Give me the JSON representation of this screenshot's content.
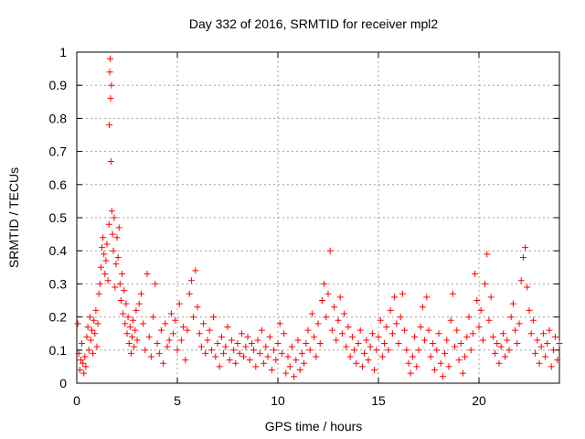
{
  "chart_data": {
    "type": "scatter",
    "title": "Day 332 of 2016, SRMTID for receiver mpl2",
    "xlabel": "GPS time / hours",
    "ylabel": "SRMTID / TECUs",
    "xlim": [
      0,
      24
    ],
    "ylim": [
      0,
      1
    ],
    "xticks": [
      0,
      5,
      10,
      15,
      20
    ],
    "xtick_labels": [
      "0",
      "5",
      "10",
      "15",
      "20"
    ],
    "yticks": [
      0,
      0.1,
      0.2,
      0.3,
      0.4,
      0.5,
      0.6,
      0.7,
      0.8,
      0.9,
      1
    ],
    "ytick_labels": [
      "0",
      "0.1",
      "0.2",
      "0.3",
      "0.4",
      "0.5",
      "0.6",
      "0.7",
      "0.8",
      "0.9",
      "1"
    ],
    "grid": true,
    "marker": "plus",
    "color": "#ff0000",
    "series": [
      {
        "name": "SRMTID",
        "points": [
          [
            0.05,
            0.18
          ],
          [
            0.1,
            0.09
          ],
          [
            0.15,
            0.04
          ],
          [
            0.2,
            0.07
          ],
          [
            0.25,
            0.12
          ],
          [
            0.3,
            0.06
          ],
          [
            0.35,
            0.03
          ],
          [
            0.4,
            0.08
          ],
          [
            0.45,
            0.05
          ],
          [
            0.5,
            0.14
          ],
          [
            0.55,
            0.17
          ],
          [
            0.6,
            0.1
          ],
          [
            0.65,
            0.2
          ],
          [
            0.7,
            0.13
          ],
          [
            0.75,
            0.16
          ],
          [
            0.8,
            0.09
          ],
          [
            0.85,
            0.19
          ],
          [
            0.9,
            0.15
          ],
          [
            0.95,
            0.22
          ],
          [
            1.0,
            0.11
          ],
          [
            1.05,
            0.18
          ],
          [
            1.1,
            0.27
          ],
          [
            1.15,
            0.3
          ],
          [
            1.2,
            0.35
          ],
          [
            1.25,
            0.41
          ],
          [
            1.3,
            0.44
          ],
          [
            1.35,
            0.39
          ],
          [
            1.4,
            0.33
          ],
          [
            1.45,
            0.37
          ],
          [
            1.5,
            0.42
          ],
          [
            1.55,
            0.31
          ],
          [
            1.6,
            0.48
          ],
          [
            1.62,
            0.78
          ],
          [
            1.64,
            0.94
          ],
          [
            1.66,
            0.98
          ],
          [
            1.68,
            0.86
          ],
          [
            1.7,
            0.67
          ],
          [
            1.72,
            0.9
          ],
          [
            1.74,
            0.52
          ],
          [
            1.78,
            0.45
          ],
          [
            1.82,
            0.4
          ],
          [
            1.86,
            0.5
          ],
          [
            1.9,
            0.29
          ],
          [
            1.95,
            0.36
          ],
          [
            2.0,
            0.44
          ],
          [
            2.05,
            0.38
          ],
          [
            2.1,
            0.47
          ],
          [
            2.15,
            0.3
          ],
          [
            2.2,
            0.25
          ],
          [
            2.25,
            0.33
          ],
          [
            2.3,
            0.21
          ],
          [
            2.35,
            0.28
          ],
          [
            2.4,
            0.18
          ],
          [
            2.45,
            0.24
          ],
          [
            2.5,
            0.15
          ],
          [
            2.55,
            0.2
          ],
          [
            2.6,
            0.12
          ],
          [
            2.65,
            0.17
          ],
          [
            2.7,
            0.09
          ],
          [
            2.75,
            0.14
          ],
          [
            2.8,
            0.19
          ],
          [
            2.85,
            0.11
          ],
          [
            2.9,
            0.16
          ],
          [
            2.95,
            0.22
          ],
          [
            3.0,
            0.13
          ],
          [
            3.1,
            0.24
          ],
          [
            3.2,
            0.27
          ],
          [
            3.3,
            0.18
          ],
          [
            3.4,
            0.1
          ],
          [
            3.5,
            0.33
          ],
          [
            3.6,
            0.14
          ],
          [
            3.7,
            0.08
          ],
          [
            3.8,
            0.2
          ],
          [
            3.9,
            0.3
          ],
          [
            4.0,
            0.12
          ],
          [
            4.1,
            0.09
          ],
          [
            4.2,
            0.16
          ],
          [
            4.3,
            0.06
          ],
          [
            4.4,
            0.18
          ],
          [
            4.5,
            0.11
          ],
          [
            4.6,
            0.13
          ],
          [
            4.7,
            0.21
          ],
          [
            4.8,
            0.15
          ],
          [
            4.9,
            0.19
          ],
          [
            5.0,
            0.1
          ],
          [
            5.1,
            0.24
          ],
          [
            5.2,
            0.13
          ],
          [
            5.3,
            0.17
          ],
          [
            5.4,
            0.07
          ],
          [
            5.5,
            0.16
          ],
          [
            5.6,
            0.27
          ],
          [
            5.7,
            0.31
          ],
          [
            5.8,
            0.2
          ],
          [
            5.9,
            0.34
          ],
          [
            6.0,
            0.23
          ],
          [
            6.1,
            0.15
          ],
          [
            6.2,
            0.11
          ],
          [
            6.3,
            0.18
          ],
          [
            6.4,
            0.09
          ],
          [
            6.5,
            0.13
          ],
          [
            6.6,
            0.16
          ],
          [
            6.7,
            0.1
          ],
          [
            6.8,
            0.2
          ],
          [
            6.9,
            0.08
          ],
          [
            7.0,
            0.12
          ],
          [
            7.1,
            0.05
          ],
          [
            7.2,
            0.14
          ],
          [
            7.3,
            0.09
          ],
          [
            7.4,
            0.11
          ],
          [
            7.5,
            0.17
          ],
          [
            7.6,
            0.07
          ],
          [
            7.7,
            0.13
          ],
          [
            7.8,
            0.1
          ],
          [
            7.9,
            0.06
          ],
          [
            8.0,
            0.12
          ],
          [
            8.1,
            0.09
          ],
          [
            8.2,
            0.15
          ],
          [
            8.3,
            0.08
          ],
          [
            8.4,
            0.11
          ],
          [
            8.5,
            0.14
          ],
          [
            8.6,
            0.07
          ],
          [
            8.7,
            0.12
          ],
          [
            8.8,
            0.1
          ],
          [
            8.9,
            0.05
          ],
          [
            9.0,
            0.13
          ],
          [
            9.1,
            0.09
          ],
          [
            9.2,
            0.16
          ],
          [
            9.3,
            0.06
          ],
          [
            9.4,
            0.11
          ],
          [
            9.5,
            0.08
          ],
          [
            9.6,
            0.14
          ],
          [
            9.7,
            0.04
          ],
          [
            9.8,
            0.1
          ],
          [
            9.9,
            0.07
          ],
          [
            10.0,
            0.12
          ],
          [
            10.1,
            0.18
          ],
          [
            10.2,
            0.09
          ],
          [
            10.3,
            0.15
          ],
          [
            10.4,
            0.03
          ],
          [
            10.5,
            0.08
          ],
          [
            10.6,
            0.05
          ],
          [
            10.7,
            0.11
          ],
          [
            10.8,
            0.02
          ],
          [
            10.9,
            0.07
          ],
          [
            11.0,
            0.13
          ],
          [
            11.1,
            0.04
          ],
          [
            11.2,
            0.09
          ],
          [
            11.3,
            0.06
          ],
          [
            11.4,
            0.12
          ],
          [
            11.5,
            0.16
          ],
          [
            11.6,
            0.1
          ],
          [
            11.7,
            0.21
          ],
          [
            11.8,
            0.14
          ],
          [
            11.9,
            0.08
          ],
          [
            12.0,
            0.18
          ],
          [
            12.1,
            0.12
          ],
          [
            12.2,
            0.25
          ],
          [
            12.3,
            0.3
          ],
          [
            12.4,
            0.2
          ],
          [
            12.5,
            0.27
          ],
          [
            12.6,
            0.4
          ],
          [
            12.7,
            0.16
          ],
          [
            12.8,
            0.23
          ],
          [
            12.9,
            0.13
          ],
          [
            13.0,
            0.19
          ],
          [
            13.1,
            0.26
          ],
          [
            13.2,
            0.15
          ],
          [
            13.3,
            0.21
          ],
          [
            13.4,
            0.11
          ],
          [
            13.5,
            0.17
          ],
          [
            13.6,
            0.08
          ],
          [
            13.7,
            0.14
          ],
          [
            13.8,
            0.1
          ],
          [
            13.9,
            0.06
          ],
          [
            14.0,
            0.12
          ],
          [
            14.1,
            0.16
          ],
          [
            14.2,
            0.05
          ],
          [
            14.3,
            0.09
          ],
          [
            14.4,
            0.13
          ],
          [
            14.5,
            0.07
          ],
          [
            14.6,
            0.11
          ],
          [
            14.7,
            0.15
          ],
          [
            14.8,
            0.04
          ],
          [
            14.9,
            0.1
          ],
          [
            15.0,
            0.14
          ],
          [
            15.1,
            0.19
          ],
          [
            15.2,
            0.08
          ],
          [
            15.3,
            0.12
          ],
          [
            15.4,
            0.17
          ],
          [
            15.5,
            0.1
          ],
          [
            15.6,
            0.22
          ],
          [
            15.7,
            0.15
          ],
          [
            15.8,
            0.26
          ],
          [
            15.9,
            0.18
          ],
          [
            16.0,
            0.12
          ],
          [
            16.1,
            0.2
          ],
          [
            16.2,
            0.27
          ],
          [
            16.3,
            0.16
          ],
          [
            16.4,
            0.1
          ],
          [
            16.5,
            0.06
          ],
          [
            16.6,
            0.03
          ],
          [
            16.7,
            0.08
          ],
          [
            16.8,
            0.14
          ],
          [
            16.9,
            0.05
          ],
          [
            17.0,
            0.1
          ],
          [
            17.1,
            0.17
          ],
          [
            17.2,
            0.23
          ],
          [
            17.3,
            0.13
          ],
          [
            17.4,
            0.26
          ],
          [
            17.5,
            0.16
          ],
          [
            17.6,
            0.08
          ],
          [
            17.7,
            0.12
          ],
          [
            17.8,
            0.04
          ],
          [
            17.9,
            0.1
          ],
          [
            18.0,
            0.15
          ],
          [
            18.1,
            0.06
          ],
          [
            18.2,
            0.02
          ],
          [
            18.3,
            0.09
          ],
          [
            18.4,
            0.13
          ],
          [
            18.5,
            0.05
          ],
          [
            18.6,
            0.19
          ],
          [
            18.7,
            0.27
          ],
          [
            18.8,
            0.11
          ],
          [
            18.9,
            0.16
          ],
          [
            19.0,
            0.07
          ],
          [
            19.1,
            0.12
          ],
          [
            19.2,
            0.03
          ],
          [
            19.3,
            0.08
          ],
          [
            19.4,
            0.14
          ],
          [
            19.5,
            0.2
          ],
          [
            19.6,
            0.1
          ],
          [
            19.7,
            0.15
          ],
          [
            19.8,
            0.33
          ],
          [
            19.9,
            0.25
          ],
          [
            20.0,
            0.17
          ],
          [
            20.1,
            0.22
          ],
          [
            20.2,
            0.13
          ],
          [
            20.3,
            0.3
          ],
          [
            20.4,
            0.39
          ],
          [
            20.5,
            0.19
          ],
          [
            20.6,
            0.26
          ],
          [
            20.7,
            0.14
          ],
          [
            20.8,
            0.09
          ],
          [
            20.9,
            0.12
          ],
          [
            21.0,
            0.06
          ],
          [
            21.1,
            0.11
          ],
          [
            21.2,
            0.15
          ],
          [
            21.3,
            0.08
          ],
          [
            21.4,
            0.13
          ],
          [
            21.5,
            0.1
          ],
          [
            21.6,
            0.2
          ],
          [
            21.7,
            0.24
          ],
          [
            21.8,
            0.16
          ],
          [
            21.9,
            0.12
          ],
          [
            22.0,
            0.18
          ],
          [
            22.1,
            0.31
          ],
          [
            22.2,
            0.38
          ],
          [
            22.3,
            0.41
          ],
          [
            22.4,
            0.29
          ],
          [
            22.5,
            0.22
          ],
          [
            22.6,
            0.15
          ],
          [
            22.7,
            0.19
          ],
          [
            22.8,
            0.09
          ],
          [
            22.9,
            0.13
          ],
          [
            23.0,
            0.06
          ],
          [
            23.1,
            0.11
          ],
          [
            23.2,
            0.15
          ],
          [
            23.3,
            0.08
          ],
          [
            23.4,
            0.12
          ],
          [
            23.5,
            0.16
          ],
          [
            23.6,
            0.05
          ],
          [
            23.7,
            0.1
          ],
          [
            23.8,
            0.14
          ],
          [
            23.9,
            0.07
          ],
          [
            24.0,
            0.12
          ]
        ]
      }
    ]
  }
}
